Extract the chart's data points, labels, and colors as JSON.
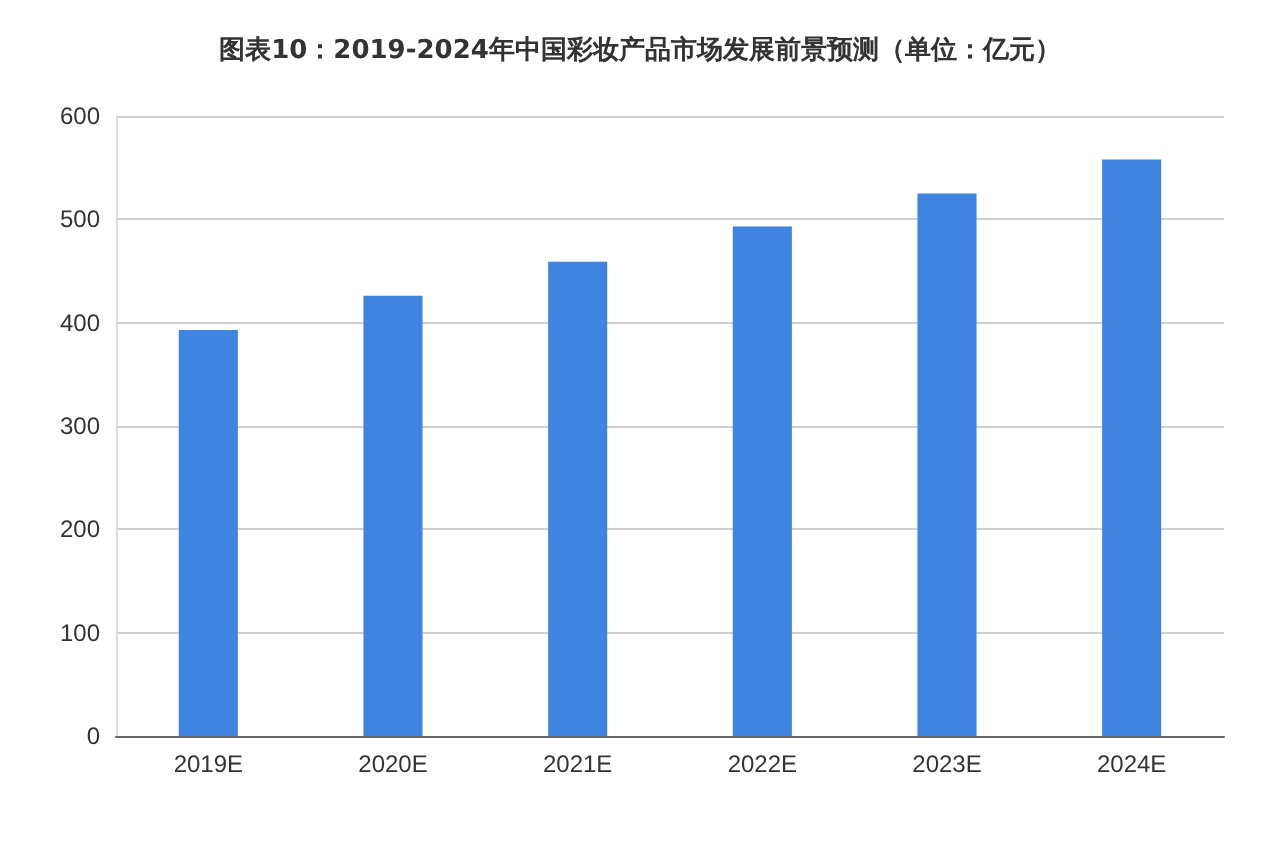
{
  "chart_data": {
    "type": "bar",
    "title": "图表10：2019-2024年中国彩妆产品市场发展前景预测（单位：亿元）",
    "categories": [
      "2019E",
      "2020E",
      "2021E",
      "2022E",
      "2023E",
      "2024E"
    ],
    "values": [
      393,
      426,
      459,
      493,
      525,
      558
    ],
    "color": "#3f84e0",
    "ylim": [
      0,
      600
    ],
    "yticks": [
      0,
      100,
      200,
      300,
      400,
      500,
      600
    ],
    "grid": "y"
  }
}
